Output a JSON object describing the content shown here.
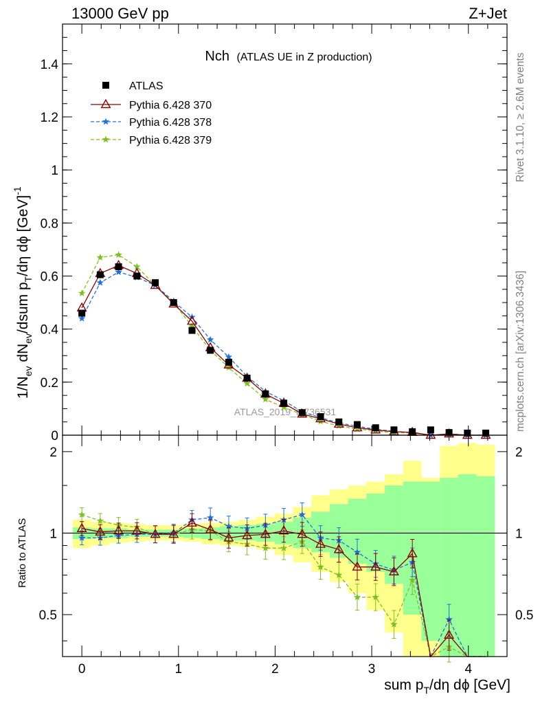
{
  "header": {
    "left": "13000 GeV pp",
    "right": "Z+Jet"
  },
  "side": {
    "rivet": "Rivet 3.1.10, ≥ 2.6M events",
    "mcplots": "mcplots.cern.ch [arXiv:1306.3436]"
  },
  "watermark": "ATLAS_2019_I1736531",
  "plot_title_main": "Nch",
  "plot_title_sub": "(ATLAS UE in Z production)",
  "colors": {
    "data": "#000000",
    "p370": "#8b0000",
    "p378": "#1e6fd9",
    "p379": "#7fbf1f",
    "band_green": "#99ff99",
    "band_yellow": "#ffff8c"
  },
  "chart_data": [
    {
      "type": "scatter",
      "panel": "main",
      "ylabel": "1/N_ev dN_ev/dsum p_T/dη dϕ [GeV]^-1",
      "xlim": [
        -0.2,
        4.4
      ],
      "ylim": [
        0,
        1.55
      ],
      "yticks": [
        "0",
        "0.2",
        "0.4",
        "0.6",
        "0.8",
        "1",
        "1.2",
        "1.4"
      ],
      "x": [
        0.0,
        0.19,
        0.38,
        0.57,
        0.76,
        0.95,
        1.14,
        1.33,
        1.52,
        1.71,
        1.9,
        2.09,
        2.28,
        2.47,
        2.66,
        2.85,
        3.04,
        3.23,
        3.42,
        3.61,
        3.8,
        3.99,
        4.18
      ],
      "legend": [
        "ATLAS",
        "Pythia 6.428 370",
        "Pythia 6.428 378",
        "Pythia 6.428 379"
      ],
      "legend_position": "top-left",
      "series": [
        {
          "name": "ATLAS",
          "marker": "square",
          "values": [
            0.46,
            0.605,
            0.635,
            0.6,
            0.575,
            0.5,
            0.395,
            0.32,
            0.275,
            0.215,
            0.155,
            0.12,
            0.085,
            0.07,
            0.05,
            0.04,
            0.028,
            0.02,
            0.013,
            0.02,
            0.01,
            0.008,
            0.008
          ]
        },
        {
          "name": "Pythia 6.428 370",
          "marker": "triangle",
          "values": [
            0.48,
            0.61,
            0.64,
            0.61,
            0.565,
            0.495,
            0.43,
            0.33,
            0.265,
            0.215,
            0.155,
            0.12,
            0.08,
            0.062,
            0.042,
            0.028,
            0.02,
            0.013,
            0.011,
            0.0,
            0.005,
            0.0,
            0.0
          ]
        },
        {
          "name": "Pythia 6.428 378",
          "marker": "star",
          "values": [
            0.44,
            0.575,
            0.615,
            0.595,
            0.565,
            0.505,
            0.445,
            0.36,
            0.295,
            0.222,
            0.165,
            0.13,
            0.088,
            0.066,
            0.046,
            0.034,
            0.022,
            0.015,
            0.009,
            0.0,
            0.005,
            0.0,
            0.0
          ]
        },
        {
          "name": "Pythia 6.428 379",
          "marker": "star",
          "values": [
            0.535,
            0.67,
            0.68,
            0.635,
            0.565,
            0.5,
            0.41,
            0.32,
            0.255,
            0.195,
            0.135,
            0.105,
            0.078,
            0.052,
            0.035,
            0.023,
            0.016,
            0.009,
            0.008,
            0.0,
            0.004,
            0.0,
            0.0
          ]
        }
      ]
    },
    {
      "type": "line",
      "panel": "ratio",
      "ylabel": "Ratio to ATLAS",
      "xlabel": "sum p_T/dη dϕ [GeV]",
      "xlim": [
        -0.2,
        4.4
      ],
      "ylim": [
        0.35,
        2.3
      ],
      "log_scale_y": true,
      "xticks": [
        "0",
        "1",
        "2",
        "3",
        "4"
      ],
      "yticks": [
        "0.5",
        "1",
        "2"
      ],
      "x": [
        0.0,
        0.19,
        0.38,
        0.57,
        0.76,
        0.95,
        1.14,
        1.33,
        1.52,
        1.71,
        1.9,
        2.09,
        2.28,
        2.47,
        2.66,
        2.85,
        3.04,
        3.23,
        3.42,
        3.61,
        3.8,
        3.99,
        4.18
      ],
      "bands": {
        "green_lo": [
          0.95,
          0.96,
          0.96,
          0.97,
          0.97,
          0.97,
          0.96,
          0.95,
          0.94,
          0.94,
          0.93,
          0.91,
          0.88,
          0.85,
          0.81,
          0.77,
          0.72,
          0.65,
          0.5,
          0.4,
          0.35,
          0.35,
          0.35
        ],
        "green_hi": [
          1.05,
          1.04,
          1.04,
          1.03,
          1.03,
          1.03,
          1.04,
          1.05,
          1.06,
          1.07,
          1.08,
          1.1,
          1.14,
          1.2,
          1.28,
          1.34,
          1.4,
          1.5,
          1.55,
          1.55,
          1.6,
          1.65,
          1.62
        ],
        "yellow_lo": [
          0.88,
          0.9,
          0.92,
          0.93,
          0.94,
          0.94,
          0.93,
          0.91,
          0.9,
          0.89,
          0.87,
          0.83,
          0.78,
          0.72,
          0.66,
          0.6,
          0.52,
          0.43,
          0.35,
          0.35,
          0.35,
          0.35,
          0.35
        ],
        "yellow_hi": [
          1.12,
          1.1,
          1.09,
          1.08,
          1.07,
          1.07,
          1.08,
          1.09,
          1.1,
          1.12,
          1.15,
          1.18,
          1.25,
          1.38,
          1.45,
          1.5,
          1.55,
          1.65,
          1.85,
          1.6,
          2.1,
          2.15,
          2.12
        ]
      },
      "series": [
        {
          "name": "Pythia 6.428 370",
          "values": [
            1.04,
            1.01,
            1.02,
            1.02,
            0.99,
            0.99,
            1.09,
            1.03,
            0.96,
            0.98,
            0.99,
            1.02,
            0.99,
            0.91,
            0.87,
            0.75,
            0.75,
            0.72,
            0.84,
            0.3,
            0.42,
            0.3,
            0.3
          ]
        },
        {
          "name": "Pythia 6.428 378",
          "values": [
            0.96,
            0.96,
            0.98,
            0.99,
            0.99,
            1.0,
            1.12,
            1.14,
            1.06,
            1.04,
            1.07,
            1.12,
            1.17,
            0.96,
            0.94,
            0.85,
            0.77,
            0.73,
            0.78,
            0.3,
            0.48,
            0.3,
            0.3
          ]
        },
        {
          "name": "Pythia 6.428 379",
          "values": [
            1.17,
            1.11,
            1.07,
            1.05,
            0.99,
            0.99,
            1.03,
            1.02,
            0.93,
            0.91,
            0.88,
            0.88,
            0.93,
            0.75,
            0.7,
            0.58,
            0.58,
            0.46,
            0.67,
            0.3,
            0.38,
            0.3,
            0.3
          ]
        }
      ]
    }
  ]
}
